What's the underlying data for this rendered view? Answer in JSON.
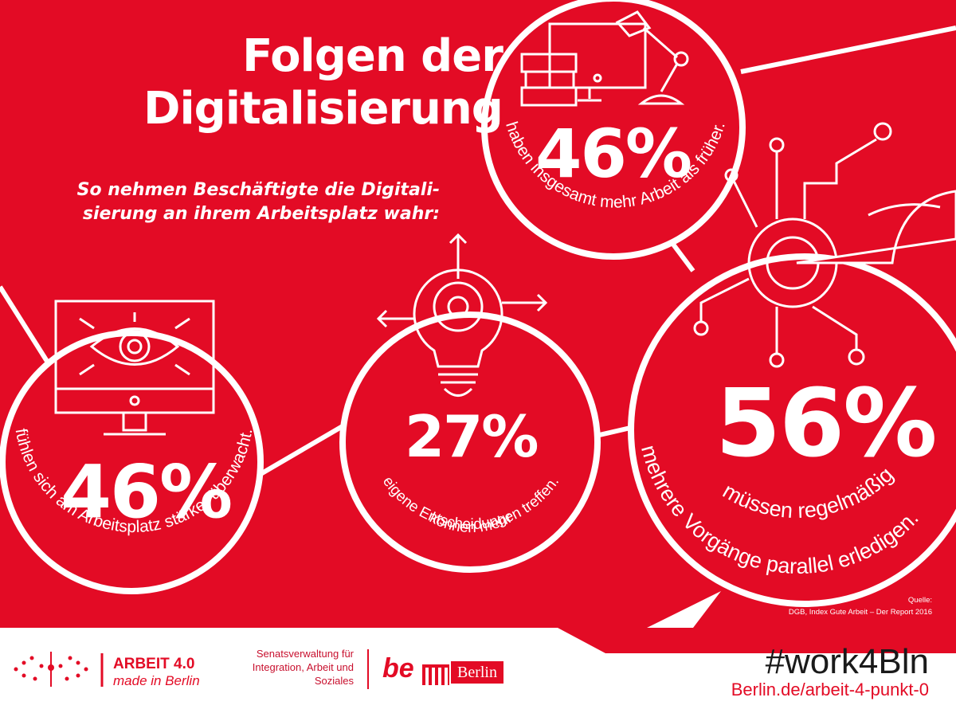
{
  "title_lines": [
    "Folgen der",
    "Digitalisierung"
  ],
  "subtitle": "So nehmen Beschäftigte die Digitali-sierung an ihrem Arbeitsplatz wahr:",
  "stats": [
    {
      "value": "46%",
      "text": "haben insgesamt mehr Arbeit als früher.",
      "icon": "desk-workplace-icon"
    },
    {
      "value": "27%",
      "text_lines": [
        "können mehr",
        "eigene Entscheidungen treffen."
      ],
      "icon": "lightbulb-target-icon"
    },
    {
      "value": "46%",
      "text": "fühlen sich am Arbeitsplatz stärker überwacht.",
      "icon": "monitor-eye-icon"
    },
    {
      "value": "56%",
      "text_lines": [
        "müssen regelmäßig",
        "mehrere Vorgänge parallel erledigen."
      ],
      "icon": "hand-circuit-icon"
    }
  ],
  "source": {
    "label": "Quelle:",
    "text": "DGB, Index Gute Arbeit – Der Report 2016"
  },
  "footer": {
    "arbeit_title": "ARBEIT 4.0",
    "arbeit_sub": "made in Berlin",
    "senats": "Senatsverwaltung für Integration, Arbeit und Soziales",
    "be_text": "be",
    "berlin_text": "Berlin",
    "hashtag": "#work4Bln",
    "url": "Berlin.de/arbeit-4-punkt-0"
  },
  "colors": {
    "brand_red": "#e30b25",
    "white": "#ffffff",
    "dark": "#1a1a1a"
  }
}
